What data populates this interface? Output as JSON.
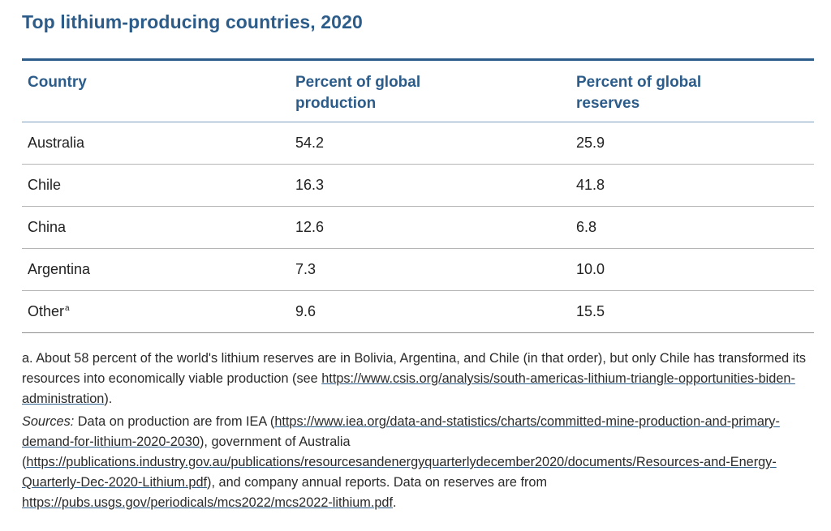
{
  "title": "Top lithium-producing countries, 2020",
  "table": {
    "headers": {
      "country": "Country",
      "production_line1": "Percent of global",
      "production_line2": "production",
      "reserves_line1": "Percent of global",
      "reserves_line2": "reserves"
    },
    "rows": [
      {
        "country": "Australia",
        "footnote": "",
        "production": "54.2",
        "reserves": "25.9"
      },
      {
        "country": "Chile",
        "footnote": "",
        "production": "16.3",
        "reserves": "41.8"
      },
      {
        "country": "China",
        "footnote": "",
        "production": "12.6",
        "reserves": "6.8"
      },
      {
        "country": "Argentina",
        "footnote": "",
        "production": "7.3",
        "reserves": "10.0"
      },
      {
        "country": "Other",
        "footnote": "a",
        "production": "9.6",
        "reserves": "15.5"
      }
    ]
  },
  "notes": {
    "footnote_a": {
      "text": "a. About 58 percent of the world's lithium reserves are in Bolivia, Argentina, and Chile (in that order), but only Chile has transformed its resources into economically viable production (see ",
      "link": "https://www.csis.org/analysis/south-americas-lithium-triangle-opportunities-biden-administration",
      "tail": ")."
    },
    "sources": {
      "label": "Sources:",
      "text1": " Data on production are from IEA (",
      "link1": "https://www.iea.org/data-and-statistics/charts/committed-mine-production-and-primary-demand-for-lithium-2020-2030",
      "text2": "), government of Australia (",
      "link2": "https://publications.industry.gov.au/publications/resourcesandenergyquarterlydecember2020/documents/Resources-and-Energy-Quarterly-Dec-2020-Lithium.pdf",
      "text3": "), and company annual reports. Data on reserves are from ",
      "link3": "https://pubs.usgs.gov/periodicals/mcs2022/mcs2022-lithium.pdf",
      "tail": "."
    }
  },
  "colors": {
    "accent": "#2c5c8a",
    "text": "#222222",
    "rule": "#b5b5b5"
  }
}
